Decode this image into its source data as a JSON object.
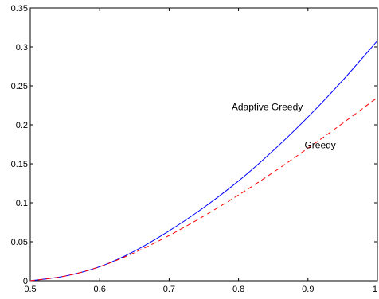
{
  "chart_data": {
    "type": "line",
    "title": "",
    "xlabel": "",
    "ylabel": "",
    "xlim": [
      0.5,
      1.0
    ],
    "ylim": [
      0,
      0.35
    ],
    "grid": false,
    "x_ticks": [
      "0.5",
      "0.6",
      "0.7",
      "0.8",
      "0.9",
      "1"
    ],
    "x_tick_values": [
      0.5,
      0.6,
      0.7,
      0.8,
      0.9,
      1.0
    ],
    "y_ticks": [
      "0",
      "0.05",
      "0.1",
      "0.15",
      "0.2",
      "0.25",
      "0.3",
      "0.35"
    ],
    "y_tick_values": [
      0,
      0.05,
      0.1,
      0.15,
      0.2,
      0.25,
      0.3,
      0.35
    ],
    "series": [
      {
        "name": "Adaptive Greedy",
        "color": "#0000ff",
        "line_style": "solid",
        "x": [
          0.5,
          0.55,
          0.6,
          0.65,
          0.7,
          0.75,
          0.8,
          0.85,
          0.9,
          0.95,
          1.0
        ],
        "y": [
          0.0,
          0.006,
          0.018,
          0.038,
          0.064,
          0.094,
          0.128,
          0.167,
          0.21,
          0.257,
          0.308
        ]
      },
      {
        "name": "Greedy",
        "color": "#ff0000",
        "line_style": "dashed",
        "x": [
          0.5,
          0.55,
          0.6,
          0.65,
          0.7,
          0.75,
          0.8,
          0.85,
          0.9,
          0.95,
          1.0
        ],
        "y": [
          0.0,
          0.006,
          0.018,
          0.036,
          0.058,
          0.083,
          0.11,
          0.139,
          0.17,
          0.202,
          0.235
        ]
      }
    ],
    "annotations": [
      {
        "text": "Adaptive Greedy",
        "x": 0.79,
        "y": 0.219
      },
      {
        "text": "Greedy",
        "x": 0.895,
        "y": 0.17
      }
    ]
  }
}
